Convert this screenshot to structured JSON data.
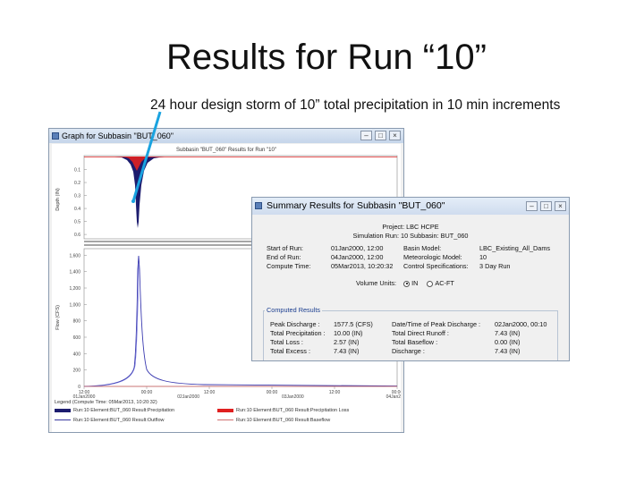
{
  "slide": {
    "title": "Results for Run “10”",
    "subtitle": "24 hour design storm of 10” total precipitation in 10 min increments"
  },
  "graph_window": {
    "title": "Graph for Subbasin \"BUT_060\"",
    "chart_title": "Subbasin \"BUT_060\" Results for Run \"10\"",
    "top_panel": {
      "ylabel": "Depth (IN)",
      "yticks": [
        "0.1",
        "0.2",
        "0.3",
        "0.4",
        "0.5",
        "0.6"
      ]
    },
    "bottom_panel": {
      "ylabel": "Flow (CFS)",
      "yticks": [
        "0",
        "200",
        "400",
        "600",
        "800",
        "1,000",
        "1,200",
        "1,400",
        "1,600"
      ]
    },
    "x_times": [
      "12:00",
      "00:00",
      "12:00",
      "00:00",
      "12:00",
      "00:00"
    ],
    "x_dates": [
      "01Jan2000",
      "02Jan2000",
      "03Jan2000",
      "04Jan2000"
    ],
    "legend_head": "Legend (Compute Time: 05Mar2013, 10:20:32)",
    "legend": [
      {
        "label": "Run:10 Element:BUT_060 Result:Precipitation",
        "color": "#1c1c6e"
      },
      {
        "label": "Run:10 Element:BUT_060 Result:Precipitation Loss",
        "color": "#e02020"
      },
      {
        "label": "Run:10 Element:BUT_060 Result:Outflow",
        "color": "#3a3aa0"
      },
      {
        "label": "Run:10 Element:BUT_060 Result:Baseflow",
        "color": "#d07070"
      }
    ],
    "colors": {
      "precip": "#1c1c6e",
      "loss": "#e02020",
      "outflow": "#3a3ab0",
      "baseflow": "#d06060",
      "pointer": "#1aa3e0"
    }
  },
  "summary_window": {
    "title": "Summary Results for Subbasin \"BUT_060\"",
    "project": "Project: LBC HCPE",
    "sim_line": "Simulation Run: 10    Subbasin: BUT_060",
    "left_info": [
      {
        "k": "Start of Run:",
        "v": "01Jan2000, 12:00"
      },
      {
        "k": "End of Run:",
        "v": "04Jan2000, 12:00"
      },
      {
        "k": "Compute Time:",
        "v": "05Mar2013, 10:20:32"
      }
    ],
    "right_info": [
      {
        "k": "Basin Model:",
        "v": "LBC_Existing_All_Dams"
      },
      {
        "k": "Meteorologic Model:",
        "v": "10"
      },
      {
        "k": "Control Specifications:",
        "v": "3 Day Run"
      }
    ],
    "volume_units_label": "Volume Units:",
    "unit_in": "IN",
    "unit_acft": "AC-FT",
    "computed_label": "Computed Results",
    "computed_left": [
      {
        "k": "Peak Discharge :",
        "v": "1577.5 (CFS)"
      },
      {
        "k": "Total Precipitation :",
        "v": "10.00 (IN)"
      },
      {
        "k": "Total Loss :",
        "v": "2.57 (IN)"
      },
      {
        "k": "Total Excess :",
        "v": "7.43 (IN)"
      }
    ],
    "computed_right": [
      {
        "k": "Date/Time of Peak Discharge :",
        "v": "02Jan2000, 00:10"
      },
      {
        "k": "Total Direct Runoff :",
        "v": "7.43 (IN)"
      },
      {
        "k": "Total Baseflow :",
        "v": "0.00 (IN)"
      },
      {
        "k": "Discharge :",
        "v": "7.43 (IN)"
      }
    ]
  }
}
